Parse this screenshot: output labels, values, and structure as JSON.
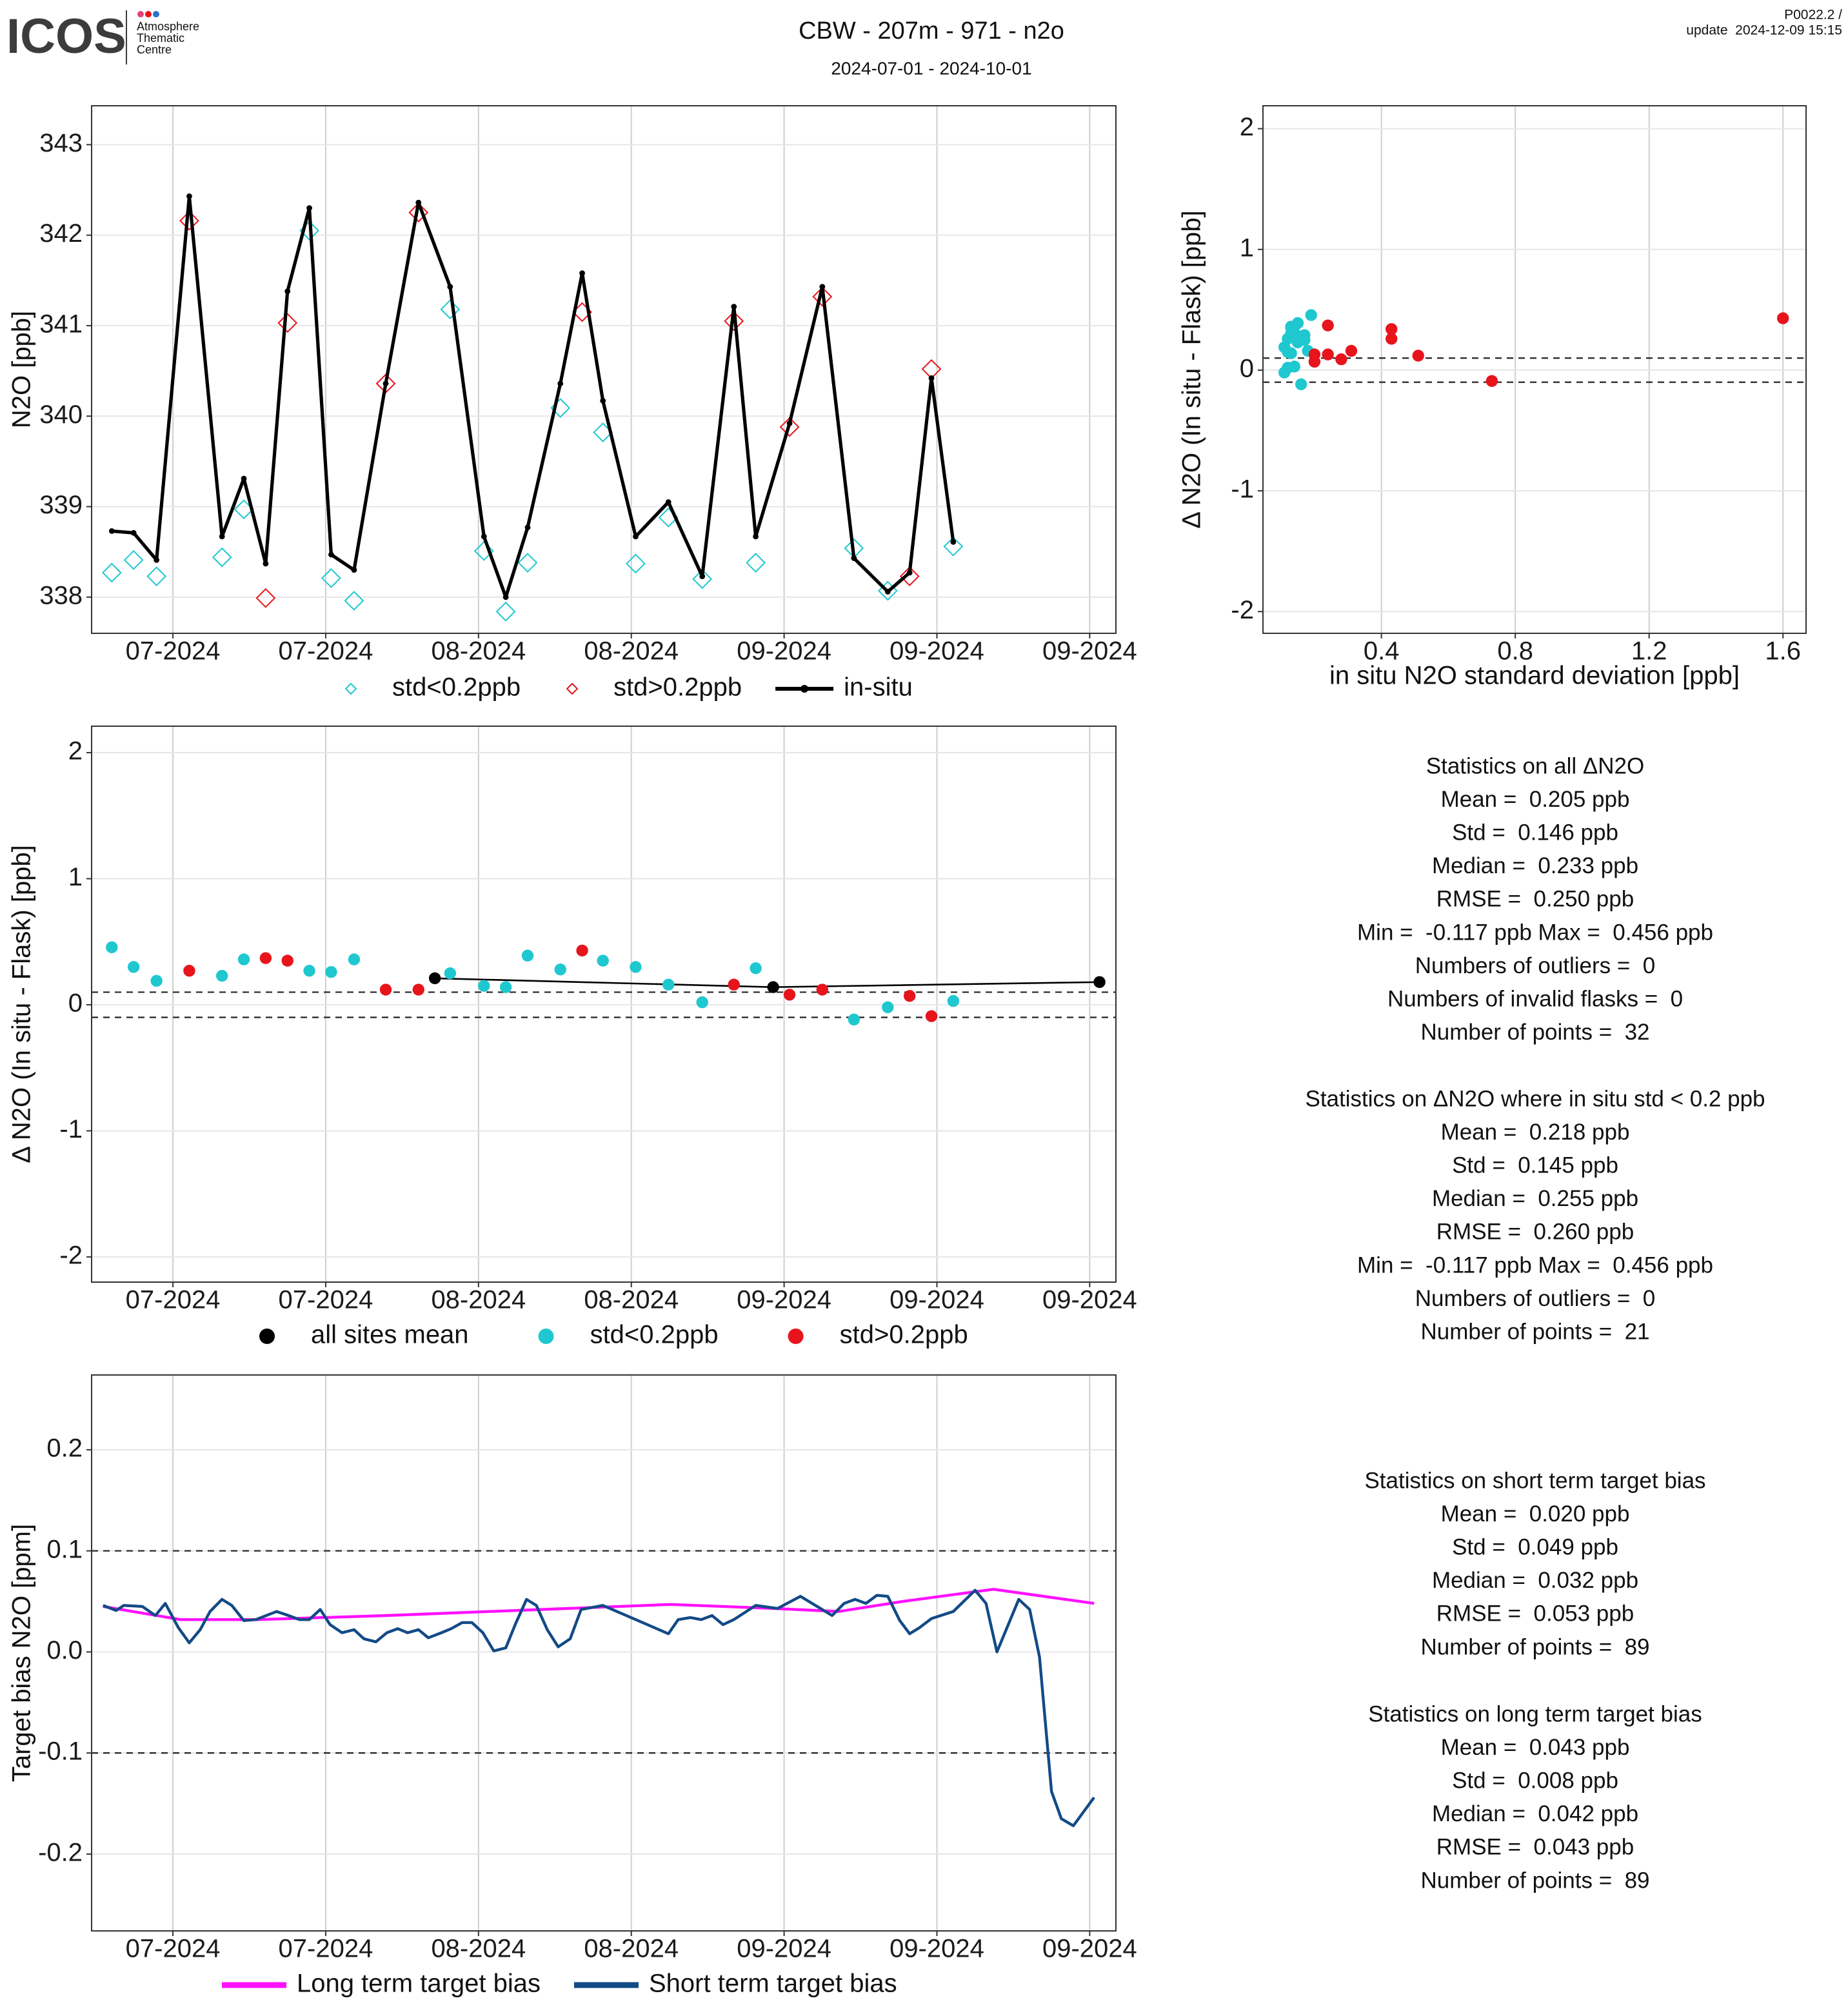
{
  "header": {
    "logo": "ICOS",
    "logo_lines": [
      "Atmosphere",
      "Thematic",
      "Centre"
    ],
    "title": "CBW - 207m - 971 - n2o",
    "subtitle": "2024-07-01 - 2024-10-01",
    "version": "P0022.2 /",
    "update": "update  2024-12-09 15:15"
  },
  "chart_data": [
    {
      "type": "line",
      "ylabel": "N2O [ppb]",
      "grid": true,
      "legend": true,
      "xlim": [
        -1.45,
        92.4
      ],
      "xticks": [
        {
          "value": 6,
          "label": "07-2024"
        },
        {
          "value": 20,
          "label": "07-2024"
        },
        {
          "value": 34,
          "label": "08-2024"
        },
        {
          "value": 48,
          "label": "08-2024"
        },
        {
          "value": 62,
          "label": "09-2024"
        },
        {
          "value": 76,
          "label": "09-2024"
        },
        {
          "value": 90,
          "label": "09-2024"
        }
      ],
      "ylim": [
        337.6,
        343.43
      ],
      "yticks": [
        338,
        339,
        340,
        341,
        342,
        343
      ],
      "series": [
        {
          "name": "std<0.2ppb",
          "color": "#1fc8cf",
          "marker": "diamond",
          "line": false,
          "x": [
            0.4,
            2.4,
            4.5,
            10.5,
            12.5,
            18.5,
            20.5,
            22.6,
            31.4,
            34.5,
            36.5,
            38.5,
            41.5,
            45.4,
            48.4,
            51.4,
            54.5,
            59.4,
            68.4,
            71.5,
            77.5
          ],
          "values": [
            338.27,
            338.41,
            338.23,
            338.44,
            338.97,
            342.05,
            338.21,
            337.96,
            341.18,
            338.51,
            337.84,
            338.38,
            340.09,
            339.82,
            338.37,
            338.88,
            338.2,
            338.38,
            338.54,
            338.07,
            338.56
          ]
        },
        {
          "name": "std>0.2ppb",
          "color": "#e8141c",
          "marker": "diamond",
          "line": false,
          "x": [
            7.5,
            14.5,
            16.5,
            25.5,
            28.5,
            43.5,
            57.4,
            62.5,
            65.5,
            73.5,
            75.5
          ],
          "values": [
            342.16,
            337.99,
            341.03,
            340.36,
            342.25,
            341.15,
            341.05,
            339.88,
            341.32,
            338.23,
            340.52
          ]
        },
        {
          "name": "in-situ",
          "color": "#000000",
          "marker": "dot",
          "line": true,
          "x": [
            0.4,
            2.4,
            4.5,
            7.5,
            10.5,
            12.5,
            14.5,
            16.5,
            18.5,
            20.5,
            22.6,
            25.5,
            28.5,
            31.4,
            34.5,
            36.5,
            38.5,
            41.5,
            43.5,
            45.4,
            48.4,
            51.4,
            54.5,
            57.4,
            59.4,
            62.5,
            65.5,
            68.4,
            71.5,
            73.5,
            75.5,
            77.5
          ],
          "values": [
            338.73,
            338.71,
            338.41,
            342.43,
            338.67,
            339.31,
            338.37,
            341.38,
            342.3,
            338.47,
            338.3,
            340.36,
            342.36,
            341.43,
            338.67,
            338.0,
            338.77,
            340.36,
            341.58,
            340.17,
            338.67,
            339.05,
            338.23,
            341.21,
            338.67,
            339.92,
            341.43,
            338.43,
            338.06,
            338.27,
            340.42,
            338.61
          ]
        }
      ]
    },
    {
      "type": "scatter",
      "xlabel": "in situ N2O standard deviation [ppb]",
      "ylabel": "Δ N2O (In situ - Flask) [ppb]",
      "grid": true,
      "legend": false,
      "xlim": [
        0.046,
        1.669
      ],
      "xticks": [
        0.4,
        0.8,
        1.2,
        1.6
      ],
      "ylim": [
        -2.18,
        2.19
      ],
      "yticks": [
        -2,
        -1,
        0,
        1,
        2
      ],
      "hlines": [
        -0.1,
        0.1
      ],
      "series": [
        {
          "color": "#1fc8cf",
          "marker": "point",
          "line": false,
          "x": [
            0.19,
            0.13,
            0.11,
            0.15,
            0.13,
            0.16,
            0.12,
            0.14,
            0.17,
            0.12,
            0.13,
            0.15,
            0.16,
            0.13,
            0.14,
            0.18,
            0.12,
            0.17,
            0.16,
            0.11,
            0.14
          ],
          "values": [
            0.456,
            0.3,
            0.19,
            0.23,
            0.36,
            0.27,
            0.26,
            0.36,
            0.25,
            0.15,
            0.14,
            0.39,
            0.28,
            0.35,
            0.3,
            0.16,
            0.02,
            0.29,
            -0.117,
            -0.02,
            0.03
          ]
        },
        {
          "color": "#e8141c",
          "marker": "point",
          "line": false,
          "x": [
            1.6,
            0.24,
            0.43,
            0.43,
            0.2,
            0.2,
            0.24,
            0.28,
            0.31,
            0.51,
            0.73
          ],
          "values": [
            0.43,
            0.37,
            0.34,
            0.26,
            0.13,
            0.07,
            0.13,
            0.09,
            0.16,
            0.12,
            -0.09
          ]
        }
      ]
    },
    {
      "type": "scatter",
      "ylabel": "Δ N2O (In situ - Flask) [ppb]",
      "grid": true,
      "legend": true,
      "xlim": [
        -1.45,
        92.4
      ],
      "xticks": [
        {
          "value": 6,
          "label": "07-2024"
        },
        {
          "value": 20,
          "label": "07-2024"
        },
        {
          "value": 34,
          "label": "08-2024"
        },
        {
          "value": 48,
          "label": "08-2024"
        },
        {
          "value": 62,
          "label": "09-2024"
        },
        {
          "value": 76,
          "label": "09-2024"
        },
        {
          "value": 90,
          "label": "09-2024"
        }
      ],
      "ylim": [
        -2.2,
        2.21
      ],
      "yticks": [
        -2,
        -1,
        0,
        1,
        2
      ],
      "hlines": [
        -0.1,
        0.1
      ],
      "series": [
        {
          "name": "all sites mean",
          "color": "#000000",
          "marker": "point",
          "line": true,
          "x": [
            30.0,
            61.0,
            90.9
          ],
          "values": [
            0.21,
            0.14,
            0.18
          ]
        },
        {
          "name": "std<0.2ppb",
          "color": "#1fc8cf",
          "marker": "point",
          "line": false,
          "x": [
            0.4,
            2.4,
            4.5,
            10.5,
            12.5,
            18.5,
            20.5,
            22.6,
            31.4,
            34.5,
            36.5,
            38.5,
            41.5,
            45.4,
            48.4,
            51.4,
            54.5,
            59.4,
            68.4,
            71.5,
            77.5
          ],
          "values": [
            0.456,
            0.3,
            0.19,
            0.23,
            0.36,
            0.27,
            0.26,
            0.36,
            0.25,
            0.15,
            0.14,
            0.39,
            0.28,
            0.35,
            0.3,
            0.16,
            0.02,
            0.29,
            -0.117,
            -0.02,
            0.03
          ]
        },
        {
          "name": "std>0.2ppb",
          "color": "#e8141c",
          "marker": "point",
          "line": false,
          "x": [
            7.5,
            14.5,
            16.5,
            25.5,
            28.5,
            43.5,
            57.4,
            62.5,
            65.5,
            73.5,
            75.5
          ],
          "values": [
            0.27,
            0.37,
            0.35,
            0.12,
            0.12,
            0.43,
            0.16,
            0.08,
            0.12,
            0.07,
            -0.09
          ]
        }
      ]
    },
    {
      "type": "line",
      "ylabel": "Target bias N2O [ppm]",
      "grid": true,
      "legend": true,
      "xlim": [
        -1.45,
        92.4
      ],
      "xticks": [
        {
          "value": 6,
          "label": "07-2024"
        },
        {
          "value": 20,
          "label": "07-2024"
        },
        {
          "value": 34,
          "label": "08-2024"
        },
        {
          "value": 48,
          "label": "08-2024"
        },
        {
          "value": 62,
          "label": "09-2024"
        },
        {
          "value": 76,
          "label": "09-2024"
        },
        {
          "value": 90,
          "label": "09-2024"
        }
      ],
      "ylim": [
        -0.276,
        0.274
      ],
      "yticks": [
        -0.2,
        -0.1,
        {
          "value": 0,
          "label": "0.0"
        },
        0.1,
        0.2
      ],
      "hlines": [
        -0.1,
        0.1
      ],
      "series": [
        {
          "name": "Long term target bias",
          "color": "#ff10ff",
          "marker": "none",
          "line": true,
          "x": [
            -0.4,
            6.7,
            13.8,
            25.6,
            37.4,
            51.6,
            61.1,
            67.0,
            72.9,
            81.2,
            90.4
          ],
          "values": [
            0.045,
            0.032,
            0.032,
            0.036,
            0.041,
            0.047,
            0.043,
            0.04,
            0.05,
            0.062,
            0.048
          ]
        },
        {
          "name": "Short term target bias",
          "color": "#124a86",
          "marker": "none",
          "line": true,
          "x": [
            -0.4,
            0.8,
            1.5,
            3.2,
            4.4,
            5.3,
            6.5,
            7.5,
            8.5,
            9.4,
            10.5,
            11.4,
            12.5,
            13.6,
            15.5,
            16.6,
            17.6,
            18.5,
            19.5,
            20.4,
            21.5,
            22.6,
            23.5,
            24.6,
            25.6,
            26.6,
            27.5,
            28.5,
            29.4,
            30.6,
            31.5,
            32.5,
            33.4,
            34.4,
            35.4,
            36.5,
            37.4,
            38.4,
            39.3,
            40.3,
            41.3,
            42.4,
            43.4,
            45.4,
            51.4,
            52.3,
            53.4,
            54.4,
            55.4,
            56.4,
            57.4,
            59.4,
            61.4,
            63.5,
            66.4,
            67.5,
            68.5,
            69.5,
            70.5,
            71.5,
            72.6,
            73.5,
            74.4,
            75.5,
            77.5,
            79.5,
            80.5,
            81.5,
            83.5,
            84.5,
            85.4,
            86.5,
            87.4,
            88.5,
            90.4
          ],
          "values": [
            0.046,
            0.041,
            0.046,
            0.045,
            0.036,
            0.048,
            0.024,
            0.009,
            0.022,
            0.04,
            0.052,
            0.046,
            0.031,
            0.032,
            0.04,
            0.036,
            0.032,
            0.032,
            0.042,
            0.027,
            0.019,
            0.022,
            0.013,
            0.01,
            0.019,
            0.023,
            0.019,
            0.022,
            0.014,
            0.019,
            0.023,
            0.029,
            0.029,
            0.019,
            0.001,
            0.004,
            0.028,
            0.052,
            0.046,
            0.022,
            0.005,
            0.013,
            0.042,
            0.046,
            0.018,
            0.032,
            0.034,
            0.032,
            0.036,
            0.027,
            0.032,
            0.046,
            0.043,
            0.055,
            0.036,
            0.048,
            0.052,
            0.048,
            0.056,
            0.055,
            0.031,
            0.018,
            0.024,
            0.033,
            0.04,
            0.061,
            0.048,
            0.0,
            0.052,
            0.042,
            -0.005,
            -0.138,
            -0.165,
            -0.172,
            -0.144
          ]
        }
      ]
    }
  ],
  "stats": [
    {
      "title": "Statistics on all ΔN2O",
      "lines": [
        "Mean =  0.205 ppb",
        "Std =  0.146 ppb",
        "Median =  0.233 ppb",
        "RMSE =  0.250 ppb",
        "Min =  -0.117 ppb Max =  0.456 ppb",
        "Numbers of outliers =  0",
        "Numbers of invalid flasks =  0",
        "Number of points =  32"
      ]
    },
    {
      "title": "Statistics on ΔN2O where in situ std < 0.2 ppb",
      "lines": [
        "Mean =  0.218 ppb",
        "Std =  0.145 ppb",
        "Median =  0.255 ppb",
        "RMSE =  0.260 ppb",
        "Min =  -0.117 ppb Max =  0.456 ppb",
        "Numbers of outliers =  0",
        "Number of points =  21"
      ]
    },
    {
      "title": "Statistics on short term target bias",
      "lines": [
        "Mean =  0.020 ppb",
        "Std =  0.049 ppb",
        "Median =  0.032 ppb",
        "RMSE =  0.053 ppb",
        "Number of points =  89"
      ]
    },
    {
      "title": "Statistics on long term target bias",
      "lines": [
        "Mean =  0.043 ppb",
        "Std =  0.008 ppb",
        "Median =  0.042 ppb",
        "RMSE =  0.043 ppb",
        "Number of points =  89"
      ]
    }
  ]
}
